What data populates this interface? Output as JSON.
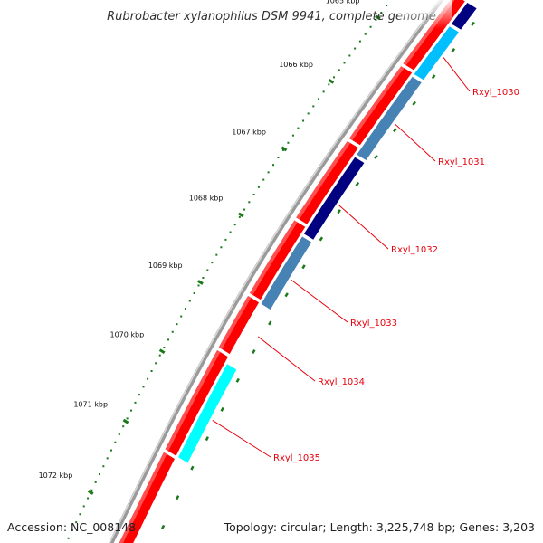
{
  "title": "Rubrobacter xylanophilus DSM 9941, complete genome",
  "ticks": [
    {
      "label": "1065 kbp"
    },
    {
      "label": "1066 kbp"
    },
    {
      "label": "1067 kbp"
    },
    {
      "label": "1068 kbp"
    },
    {
      "label": "1069 kbp"
    },
    {
      "label": "1070 kbp"
    },
    {
      "label": "1071 kbp"
    },
    {
      "label": "1072 kbp"
    }
  ],
  "genes": [
    {
      "name": "Rxyl_1030",
      "color": "#00bfff"
    },
    {
      "name": "Rxyl_1031",
      "color": "#4682b4"
    },
    {
      "name": "Rxyl_1032",
      "color": "#000080"
    },
    {
      "name": "Rxyl_1033",
      "color": "#4682b4"
    },
    {
      "name": "Rxyl_1034",
      "color": ""
    },
    {
      "name": "Rxyl_1035",
      "color": "#00ffff"
    }
  ],
  "colors": {
    "forward_track": "#ff0000",
    "backbone": "#808080",
    "ticks": "#1a7a1a",
    "labels": "#e8000b"
  },
  "footer": {
    "accession": "Accession: NC_008148",
    "topology": "Topology: circular; Length: 3,225,748 bp; Genes: 3,203"
  }
}
